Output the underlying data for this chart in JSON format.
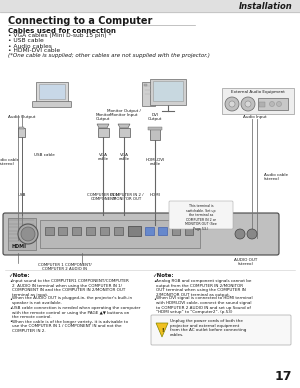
{
  "title_header": "Installation",
  "section_title": "Connecting to a Computer",
  "cables_title": "Cables used for connection",
  "cables_list": [
    "• VGA cables (Mini D-sub 15 pin) *",
    "• USB cable",
    "• Audio cables",
    "• HDMI-DVI cable",
    "(*One cable is supplied; other cables are not supplied with the projector.)"
  ],
  "note_left_title": "✓Note:",
  "note_left_items": [
    "Input sound to the COMPUTER1 COMPONENT/COMPUTER\n 2  AUDIO IN terminal when using the COMPUTER IN 1/\n COMPONENT IN and the COMPUTER IN 2/MONITOR OUT\n terminal as input.",
    "When the AUDIO OUT is plugged-in, the projector's built-in\n speaker is not available.",
    "USB cable connection is needed when operating the computer\n with the remote control or using the PAGE ▲▼ buttons on the\n remote control.",
    "When the cable is of the longer variety, it is advisable to\n use the COMPUTER IN 1 / COMPONENT IN and not the\n COMPUTER IN 2."
  ],
  "note_right_title": "✓Note:",
  "note_right_items": [
    "Analog RGB and component signals cannot be\n output from the COMPUTER IN 2/MONITOR\n OUT terminal when using the COMPUTER IN\n 2/MONITOR OUT terminal as output.",
    "When DVI signal is connected to HDMI terminal\n with HDMI-DVI cable, connect the sound signal\n to COMPUTER 2 AUDIO IN and set up Sound of\n “HDMI setup” to “Computer2”. (p.53)"
  ],
  "warning_text": "Unplug the power cords of both the\nprojector and external equipment\nfrom the AC outlet before connecting\ncables.",
  "page_number": "17",
  "bg_color": "#f5f5f5",
  "text_color": "#1a1a1a",
  "gray1": "#cccccc",
  "gray2": "#888888",
  "gray3": "#444444",
  "proj_color": "#b8b8b8",
  "cable_color": "#555555"
}
